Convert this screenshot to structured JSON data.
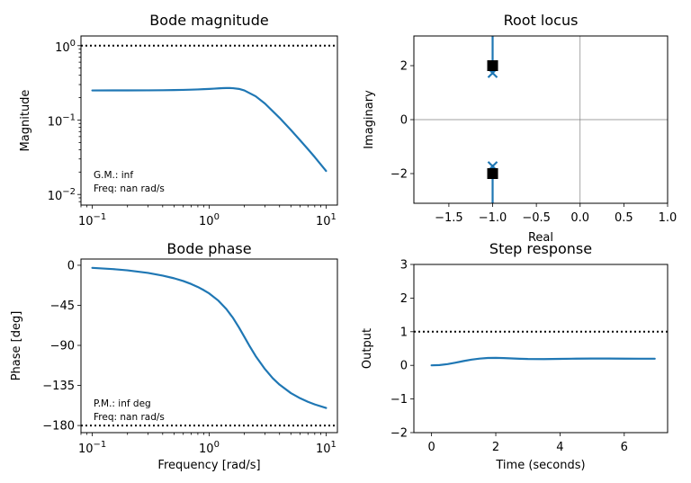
{
  "colors": {
    "series": "#1f77b4",
    "marker": "#000000",
    "reference": "#000000"
  },
  "chart_data": [
    {
      "id": "bode-mag",
      "type": "line",
      "title": "Bode magnitude",
      "xlabel": "",
      "ylabel": "Magnitude",
      "xscale": "log",
      "yscale": "log",
      "xlim": [
        0.08,
        12.5
      ],
      "ylim": [
        0.0072,
        1.35
      ],
      "xticks": [
        {
          "value": 0.1,
          "base": "10",
          "exp": "−1"
        },
        {
          "value": 1,
          "base": "10",
          "exp": "0"
        },
        {
          "value": 10,
          "base": "10",
          "exp": "1"
        }
      ],
      "yticks": [
        {
          "value": 1,
          "base": "10",
          "exp": "0"
        },
        {
          "value": 0.1,
          "base": "10",
          "exp": "−1"
        },
        {
          "value": 0.01,
          "base": "10",
          "exp": "−2"
        }
      ],
      "reference_line": {
        "axis": "y",
        "value": 1,
        "style": "dotted"
      },
      "annotations": [
        "G.M.: inf",
        "Freq: nan rad/s"
      ],
      "series": [
        {
          "x": [
            0.1,
            0.15,
            0.2,
            0.3,
            0.4,
            0.5,
            0.6,
            0.7,
            0.8,
            0.9,
            1.0,
            1.1,
            1.2,
            1.3,
            1.4,
            1.5,
            1.6,
            1.8,
            2.0,
            2.5,
            3.0,
            4.0,
            5.0,
            6.0,
            7.0,
            8.0,
            10.0
          ],
          "y": [
            0.2501,
            0.2503,
            0.2505,
            0.2511,
            0.252,
            0.2531,
            0.2545,
            0.2561,
            0.258,
            0.2601,
            0.2623,
            0.2646,
            0.2667,
            0.2684,
            0.2694,
            0.2695,
            0.2683,
            0.2622,
            0.25,
            0.2087,
            0.1667,
            0.107,
            0.0735,
            0.0535,
            0.0406,
            0.0318,
            0.0207
          ]
        }
      ]
    },
    {
      "id": "root-locus",
      "type": "scatter",
      "title": "Root locus",
      "xlabel": "Real",
      "ylabel": "Imaginary",
      "xscale": "linear",
      "yscale": "linear",
      "xlim": [
        -1.9,
        1.0
      ],
      "ylim": [
        -3.1,
        3.1
      ],
      "xticks": [
        -1.5,
        -1.0,
        -0.5,
        0.0,
        0.5,
        1.0
      ],
      "xtick_labels": [
        "−1.5",
        "−1.0",
        "−0.5",
        "0.0",
        "0.5",
        "1.0"
      ],
      "yticks": [
        2,
        0,
        -2
      ],
      "ytick_labels": [
        "2",
        "0",
        "−2"
      ],
      "locus_branches": [
        {
          "x": [
            -1.0,
            -1.0
          ],
          "y": [
            1.7,
            3.1
          ]
        },
        {
          "x": [
            -1.0,
            -1.0
          ],
          "y": [
            -1.7,
            -3.1
          ]
        }
      ],
      "poles": [
        {
          "x": -1.0,
          "y": 1.73
        },
        {
          "x": -1.0,
          "y": -1.73
        }
      ],
      "closed_loop_poles": [
        {
          "x": -1.0,
          "y": 2.0
        },
        {
          "x": -1.0,
          "y": -2.0
        }
      ]
    },
    {
      "id": "bode-phase",
      "type": "line",
      "title": "Bode phase",
      "xlabel": "Frequency [rad/s]",
      "ylabel": "Phase [deg]",
      "xscale": "log",
      "yscale": "linear",
      "xlim": [
        0.08,
        12.5
      ],
      "ylim": [
        -188,
        7
      ],
      "xticks": [
        {
          "value": 0.1,
          "base": "10",
          "exp": "−1"
        },
        {
          "value": 1,
          "base": "10",
          "exp": "0"
        },
        {
          "value": 10,
          "base": "10",
          "exp": "1"
        }
      ],
      "yticks": [
        0,
        -45,
        -90,
        -135,
        -180
      ],
      "ytick_labels": [
        "0",
        "−45",
        "−90",
        "−135",
        "−180"
      ],
      "reference_line": {
        "axis": "y",
        "value": -180,
        "style": "dotted"
      },
      "annotations": [
        "P.M.: inf deg",
        "Freq: nan rad/s"
      ],
      "series": [
        {
          "x": [
            0.1,
            0.15,
            0.2,
            0.3,
            0.4,
            0.5,
            0.6,
            0.7,
            0.8,
            0.9,
            1.0,
            1.2,
            1.4,
            1.6,
            1.8,
            2.0,
            2.2,
            2.5,
            3.0,
            3.5,
            4.0,
            5.0,
            6.0,
            7.0,
            8.0,
            10.0
          ],
          "y": [
            -2.9,
            -4.3,
            -5.7,
            -8.6,
            -11.6,
            -14.6,
            -17.7,
            -21.0,
            -24.4,
            -28.0,
            -31.6,
            -39.8,
            -49.1,
            -59.2,
            -70.0,
            -80.5,
            -90.0,
            -102.1,
            -116.6,
            -126.9,
            -134.1,
            -143.6,
            -149.4,
            -153.4,
            -156.3,
            -160.3
          ]
        }
      ]
    },
    {
      "id": "step-response",
      "type": "line",
      "title": "Step response",
      "xlabel": "Time (seconds)",
      "ylabel": "Output",
      "xscale": "linear",
      "yscale": "linear",
      "xlim": [
        -0.55,
        7.35
      ],
      "ylim": [
        -2.0,
        3.0
      ],
      "xticks": [
        0,
        2,
        4,
        6
      ],
      "xtick_labels": [
        "0",
        "2",
        "4",
        "6"
      ],
      "yticks": [
        3,
        2,
        1,
        0,
        -1,
        -2
      ],
      "ytick_labels": [
        "3",
        "2",
        "1",
        "0",
        "−1",
        "−2"
      ],
      "reference_line": {
        "axis": "y",
        "value": 1,
        "style": "dotted"
      },
      "series": [
        {
          "x": [
            0,
            0.25,
            0.5,
            0.75,
            1.0,
            1.25,
            1.5,
            1.75,
            2.0,
            2.25,
            2.5,
            2.75,
            3.0,
            3.5,
            4.0,
            4.5,
            5.0,
            5.5,
            6.0,
            6.5,
            6.95
          ],
          "y": [
            0.0,
            0.0081,
            0.0373,
            0.0815,
            0.1286,
            0.1707,
            0.2016,
            0.2186,
            0.2223,
            0.2164,
            0.2061,
            0.1957,
            0.1883,
            0.1858,
            0.1918,
            0.1993,
            0.2032,
            0.2024,
            0.1997,
            0.1979,
            0.198
          ]
        }
      ]
    }
  ]
}
